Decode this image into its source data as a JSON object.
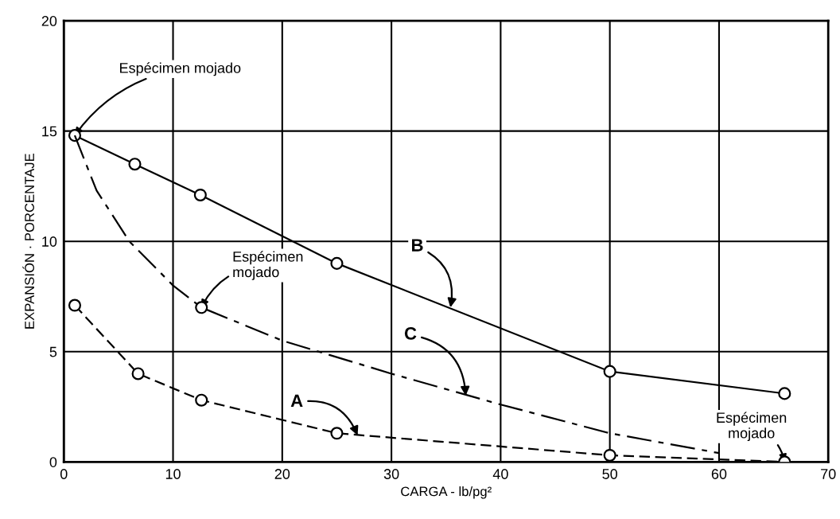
{
  "chart_data": {
    "type": "line",
    "xlabel": "CARGA - lb/pg²",
    "ylabel": "EXPANSIÓN · PORCENTAJE",
    "xlim": [
      0,
      70
    ],
    "xticks": [
      0,
      10,
      20,
      30,
      40,
      50,
      60,
      70
    ],
    "ylim": [
      0,
      20
    ],
    "yticks": [
      0,
      5,
      10,
      15,
      20
    ],
    "grid": true,
    "series": [
      {
        "type": "line",
        "color": "#000000",
        "line_style": "solid",
        "marker": "circle",
        "x": [
          1,
          6.5,
          12.5,
          25,
          50,
          66
        ],
        "values": [
          14.8,
          13.5,
          12.1,
          9.0,
          4.1,
          3.1
        ]
      },
      {
        "type": "line",
        "color": "#000000",
        "line_style": "dashdot",
        "marker": "none",
        "x": [
          1,
          3,
          6,
          10,
          12.6,
          20,
          30,
          40,
          50,
          60
        ],
        "values": [
          14.8,
          12.3,
          10,
          8,
          7.0,
          5.5,
          4.0,
          2.6,
          1.3,
          0.4
        ]
      },
      {
        "type": "scatter",
        "color": "#000000",
        "marker": "circle",
        "x": [
          12.6
        ],
        "values": [
          7.0
        ]
      },
      {
        "type": "line",
        "color": "#000000",
        "line_style": "dashed",
        "marker": "circle",
        "x": [
          1,
          6.8,
          12.6,
          25,
          50,
          66
        ],
        "values": [
          7.1,
          4.0,
          2.8,
          1.3,
          0.3,
          0
        ]
      }
    ],
    "annotations": [
      {
        "text": "Espécimen mojado",
        "x": 1,
        "y": 14.8
      },
      {
        "text": "Espécimen\nmojado",
        "x": 12.6,
        "y": 7.0
      },
      {
        "text": "B",
        "x": 35.4,
        "y": 7.0
      },
      {
        "text": "C",
        "x": 36.8,
        "y": 3.0
      },
      {
        "text": "A",
        "x": 26.9,
        "y": 1.2
      },
      {
        "text": "Espécimen\nmojado",
        "x": 66,
        "y": 0
      }
    ]
  }
}
